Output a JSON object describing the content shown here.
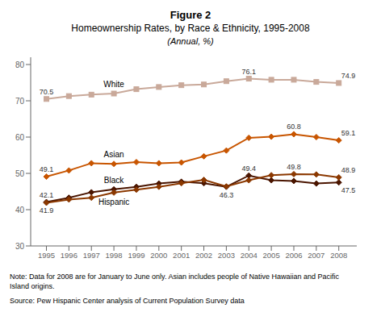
{
  "chart_data": {
    "type": "line",
    "title": "Figure 2",
    "subtitle": [
      "Homeownership Rates, by Race & Ethnicity, 1995-2008",
      "(Annual, %)"
    ],
    "x": [
      1995,
      1996,
      1997,
      1998,
      1999,
      2000,
      2001,
      2002,
      2003,
      2004,
      2005,
      2006,
      2007,
      2008
    ],
    "xlim": [
      1994.3,
      2008.8
    ],
    "xticks": [
      1995,
      1996,
      1997,
      1998,
      1999,
      2000,
      2001,
      2002,
      2003,
      2004,
      2005,
      2006,
      2007,
      2008
    ],
    "ylim": [
      30,
      82
    ],
    "yticks": [
      30,
      40,
      50,
      60,
      70,
      80
    ],
    "grid": false,
    "data_labels": true,
    "series": [
      {
        "name": "White",
        "color": "#c9a99a",
        "marker": "square",
        "values": [
          70.5,
          71.3,
          71.7,
          72.0,
          73.2,
          73.8,
          74.3,
          74.5,
          75.4,
          76.1,
          75.8,
          75.8,
          75.2,
          74.9
        ],
        "value_labels": [
          "70.5",
          null,
          null,
          null,
          null,
          null,
          null,
          null,
          null,
          "76.1",
          null,
          null,
          null,
          "74.9"
        ]
      },
      {
        "name": "Asian",
        "color": "#c85500",
        "marker": "diamond",
        "values": [
          49.1,
          50.8,
          52.8,
          52.6,
          53.1,
          52.8,
          53.0,
          54.7,
          56.3,
          59.8,
          60.1,
          60.8,
          60.0,
          59.1
        ],
        "value_labels": [
          "49.1",
          null,
          null,
          null,
          null,
          null,
          null,
          null,
          null,
          null,
          null,
          "60.8",
          null,
          "59.1"
        ]
      },
      {
        "name": "Black",
        "color": "#4a1500",
        "marker": "diamond",
        "values": [
          42.1,
          43.3,
          44.8,
          45.6,
          46.3,
          47.2,
          47.7,
          47.3,
          46.3,
          49.4,
          48.1,
          47.9,
          47.2,
          47.5
        ],
        "value_labels": [
          "42.1",
          null,
          null,
          null,
          null,
          null,
          null,
          null,
          "46.3",
          "49.4",
          null,
          null,
          null,
          "47.5"
        ]
      },
      {
        "name": "Hispanic",
        "color": "#8b3800",
        "marker": "diamond",
        "values": [
          41.9,
          42.8,
          43.3,
          44.7,
          45.5,
          46.3,
          47.3,
          48.2,
          46.4,
          48.1,
          49.5,
          49.8,
          49.7,
          48.9
        ],
        "value_labels": [
          "41.9",
          null,
          null,
          null,
          null,
          null,
          null,
          null,
          null,
          null,
          null,
          "49.8",
          null,
          "48.9"
        ]
      }
    ],
    "annotations": [
      "Note: Data for 2008 are for January to June only. Asian includes people of Native Hawaiian and Pacific\nIsland origins.",
      "Source: Pew Hispanic Center analysis of Current Population Survey data"
    ]
  }
}
